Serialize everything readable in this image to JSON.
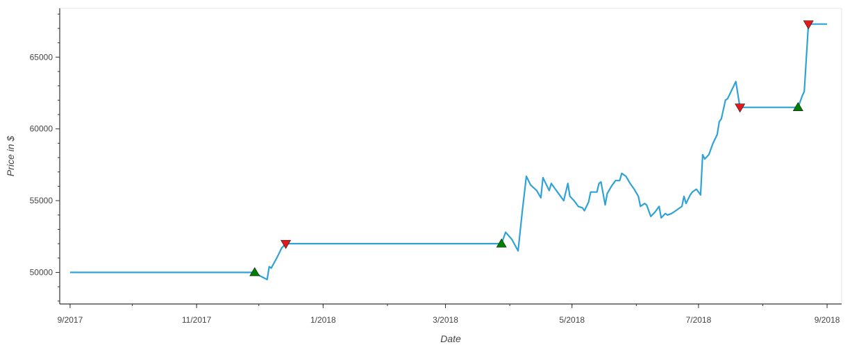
{
  "chart_data": {
    "type": "line",
    "title": "",
    "xlabel": "Date",
    "ylabel": "Price in $",
    "x_range": [
      "2017-08-27",
      "2018-09-08"
    ],
    "ylim": [
      47800,
      68400
    ],
    "x_ticks": [
      {
        "date": "2017-09-01",
        "label": "9/2017"
      },
      {
        "date": "2017-11-01",
        "label": "11/2017"
      },
      {
        "date": "2018-01-01",
        "label": "1/2018"
      },
      {
        "date": "2018-03-01",
        "label": "3/2018"
      },
      {
        "date": "2018-05-01",
        "label": "5/2018"
      },
      {
        "date": "2018-07-01",
        "label": "7/2018"
      },
      {
        "date": "2018-09-01",
        "label": "9/2018"
      }
    ],
    "y_ticks": [
      50000,
      55000,
      60000,
      65000
    ],
    "line_color": "#2fa2d6",
    "buy_color": "#008000",
    "sell_color": "#e31a1c",
    "grid": false,
    "series": [
      {
        "points": [
          [
            "2017-09-01",
            50000
          ],
          [
            "2017-11-29",
            50000
          ],
          [
            "2017-12-01",
            49800
          ],
          [
            "2017-12-05",
            49500
          ],
          [
            "2017-12-06",
            50400
          ],
          [
            "2017-12-07",
            50300
          ],
          [
            "2017-12-10",
            51100
          ],
          [
            "2017-12-12",
            51700
          ],
          [
            "2017-12-14",
            52000
          ],
          [
            "2018-03-28",
            52000
          ],
          [
            "2018-03-30",
            52800
          ],
          [
            "2018-04-02",
            52300
          ],
          [
            "2018-04-05",
            51500
          ],
          [
            "2018-04-07",
            54200
          ],
          [
            "2018-04-09",
            56700
          ],
          [
            "2018-04-11",
            56100
          ],
          [
            "2018-04-14",
            55700
          ],
          [
            "2018-04-16",
            55200
          ],
          [
            "2018-04-17",
            56600
          ],
          [
            "2018-04-18",
            56300
          ],
          [
            "2018-04-20",
            55700
          ],
          [
            "2018-04-21",
            56200
          ],
          [
            "2018-04-23",
            55800
          ],
          [
            "2018-04-25",
            55400
          ],
          [
            "2018-04-27",
            55000
          ],
          [
            "2018-04-29",
            56200
          ],
          [
            "2018-04-30",
            55300
          ],
          [
            "2018-05-02",
            55000
          ],
          [
            "2018-05-04",
            54600
          ],
          [
            "2018-05-06",
            54500
          ],
          [
            "2018-05-07",
            54300
          ],
          [
            "2018-05-09",
            54900
          ],
          [
            "2018-05-10",
            55600
          ],
          [
            "2018-05-13",
            55600
          ],
          [
            "2018-05-14",
            56200
          ],
          [
            "2018-05-15",
            56300
          ],
          [
            "2018-05-17",
            54700
          ],
          [
            "2018-05-18",
            55500
          ],
          [
            "2018-05-20",
            56000
          ],
          [
            "2018-05-22",
            56400
          ],
          [
            "2018-05-24",
            56400
          ],
          [
            "2018-05-25",
            56900
          ],
          [
            "2018-05-27",
            56700
          ],
          [
            "2018-05-29",
            56200
          ],
          [
            "2018-05-31",
            55800
          ],
          [
            "2018-06-02",
            55300
          ],
          [
            "2018-06-03",
            54600
          ],
          [
            "2018-06-05",
            54800
          ],
          [
            "2018-06-06",
            54700
          ],
          [
            "2018-06-08",
            53900
          ],
          [
            "2018-06-10",
            54200
          ],
          [
            "2018-06-12",
            54600
          ],
          [
            "2018-06-13",
            53800
          ],
          [
            "2018-06-15",
            54100
          ],
          [
            "2018-06-16",
            54000
          ],
          [
            "2018-06-18",
            54100
          ],
          [
            "2018-06-20",
            54300
          ],
          [
            "2018-06-23",
            54600
          ],
          [
            "2018-06-24",
            55300
          ],
          [
            "2018-06-25",
            54800
          ],
          [
            "2018-06-27",
            55400
          ],
          [
            "2018-06-28",
            55600
          ],
          [
            "2018-06-30",
            55800
          ],
          [
            "2018-07-02",
            55400
          ],
          [
            "2018-07-03",
            58200
          ],
          [
            "2018-07-04",
            57900
          ],
          [
            "2018-07-06",
            58200
          ],
          [
            "2018-07-08",
            59000
          ],
          [
            "2018-07-10",
            59600
          ],
          [
            "2018-07-11",
            60500
          ],
          [
            "2018-07-12",
            60700
          ],
          [
            "2018-07-14",
            62000
          ],
          [
            "2018-07-15",
            62100
          ],
          [
            "2018-07-17",
            62700
          ],
          [
            "2018-07-19",
            63300
          ],
          [
            "2018-07-21",
            61500
          ],
          [
            "2018-08-18",
            61500
          ],
          [
            "2018-08-20",
            62300
          ],
          [
            "2018-08-21",
            62600
          ],
          [
            "2018-08-23",
            67300
          ],
          [
            "2018-09-01",
            67300
          ]
        ]
      }
    ],
    "buy_markers": [
      [
        "2017-11-29",
        50000
      ],
      [
        "2018-03-28",
        52000
      ],
      [
        "2018-08-18",
        61500
      ]
    ],
    "sell_markers": [
      [
        "2017-12-14",
        52000
      ],
      [
        "2018-07-21",
        61500
      ],
      [
        "2018-08-23",
        67300
      ]
    ]
  }
}
